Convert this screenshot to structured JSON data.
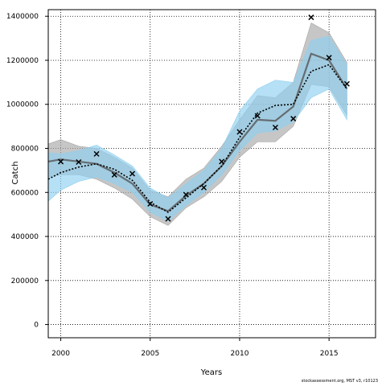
{
  "footer": "stockassessment.org, MST v3, r10123",
  "chart_data": {
    "type": "line",
    "xlabel": "Years",
    "ylabel": "Catch",
    "xlim": [
      1999.3,
      2017.6
    ],
    "ylim": [
      -60000,
      1430000
    ],
    "x_ticks": [
      2000,
      2005,
      2010,
      2015
    ],
    "y_ticks": [
      0,
      200000,
      400000,
      600000,
      800000,
      1000000,
      1200000,
      1400000
    ],
    "grid": true,
    "colors": {
      "band_a": "#a8a8a8",
      "band_b": "#8fd0ef",
      "line_a": "#555555",
      "line_b": "#000000",
      "observed": "#000000"
    },
    "x": [
      1999.3,
      2000,
      2001,
      2002,
      2003,
      2004,
      2005,
      2006,
      2007,
      2008,
      2009,
      2010,
      2011,
      2012,
      2013,
      2014,
      2015,
      2016
    ],
    "series": [
      {
        "style": "band_a",
        "lower": [
          670000,
          680000,
          680000,
          660000,
          620000,
          570000,
          490000,
          450000,
          530000,
          580000,
          650000,
          760000,
          830000,
          830000,
          900000,
          1090000,
          1080000,
          950000
        ],
        "estimate": [
          740000,
          750000,
          740000,
          730000,
          690000,
          640000,
          545000,
          515000,
          585000,
          640000,
          720000,
          830000,
          930000,
          925000,
          990000,
          1230000,
          1200000,
          1070000
        ],
        "upper": [
          820000,
          840000,
          810000,
          800000,
          760000,
          710000,
          610000,
          580000,
          660000,
          710000,
          810000,
          930000,
          1040000,
          1030000,
          1100000,
          1370000,
          1325000,
          1190000
        ]
      },
      {
        "style": "band_b",
        "lower": [
          560000,
          610000,
          650000,
          670000,
          640000,
          600000,
          510000,
          470000,
          540000,
          600000,
          680000,
          790000,
          870000,
          880000,
          920000,
          1030000,
          1070000,
          930000
        ],
        "estimate": [
          660000,
          690000,
          715000,
          730000,
          705000,
          655000,
          555000,
          510000,
          575000,
          640000,
          720000,
          850000,
          960000,
          995000,
          1000000,
          1150000,
          1180000,
          1070000
        ],
        "upper": [
          780000,
          775000,
          790000,
          815000,
          770000,
          720000,
          620000,
          575000,
          640000,
          700000,
          800000,
          970000,
          1070000,
          1110000,
          1100000,
          1290000,
          1310000,
          1180000
        ]
      }
    ],
    "observed": {
      "x": [
        2000,
        2001,
        2002,
        2003,
        2004,
        2005,
        2006,
        2007,
        2008,
        2009,
        2010,
        2011,
        2012,
        2013,
        2014,
        2015,
        2016
      ],
      "y": [
        740000,
        738000,
        775000,
        680000,
        685000,
        548000,
        480000,
        590000,
        622000,
        740000,
        875000,
        948000,
        895000,
        935000,
        1395000,
        1212000,
        1093000
      ]
    }
  }
}
